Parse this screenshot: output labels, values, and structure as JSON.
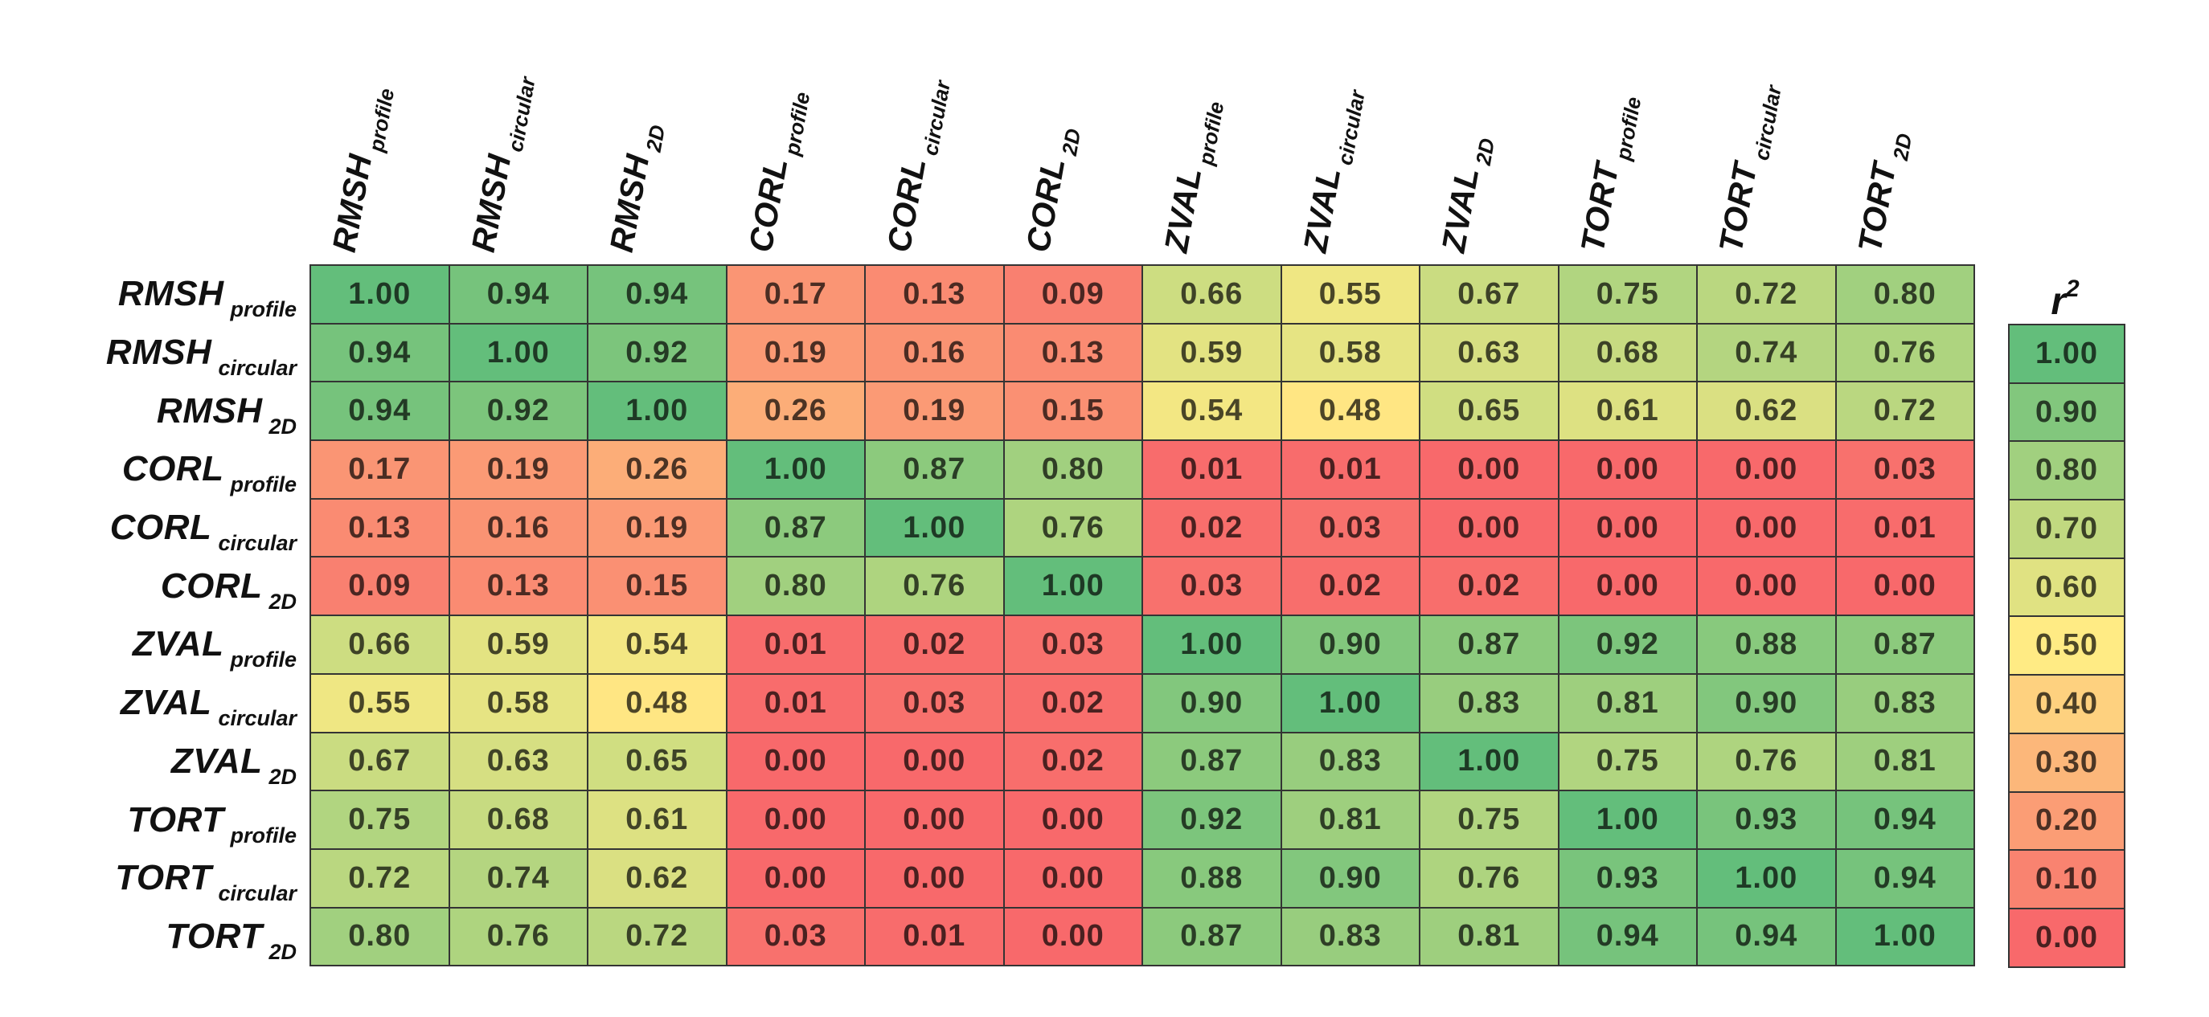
{
  "chart_data": {
    "type": "heatmap",
    "title": "",
    "labels": [
      {
        "main": "RMSH",
        "sub": "profile"
      },
      {
        "main": "RMSH",
        "sub": "circular"
      },
      {
        "main": "RMSH",
        "sub": "2D"
      },
      {
        "main": "CORL",
        "sub": "profile"
      },
      {
        "main": "CORL",
        "sub": "circular"
      },
      {
        "main": "CORL",
        "sub": "2D"
      },
      {
        "main": "ZVAL",
        "sub": "profile"
      },
      {
        "main": "ZVAL",
        "sub": "circular"
      },
      {
        "main": "ZVAL",
        "sub": "2D"
      },
      {
        "main": "TORT",
        "sub": "profile"
      },
      {
        "main": "TORT",
        "sub": "circular"
      },
      {
        "main": "TORT",
        "sub": "2D"
      }
    ],
    "values": [
      [
        1.0,
        0.94,
        0.94,
        0.17,
        0.13,
        0.09,
        0.66,
        0.55,
        0.67,
        0.75,
        0.72,
        0.8
      ],
      [
        0.94,
        1.0,
        0.92,
        0.19,
        0.16,
        0.13,
        0.59,
        0.58,
        0.63,
        0.68,
        0.74,
        0.76
      ],
      [
        0.94,
        0.92,
        1.0,
        0.26,
        0.19,
        0.15,
        0.54,
        0.48,
        0.65,
        0.61,
        0.62,
        0.72
      ],
      [
        0.17,
        0.19,
        0.26,
        1.0,
        0.87,
        0.8,
        0.01,
        0.01,
        0.0,
        0.0,
        0.0,
        0.03
      ],
      [
        0.13,
        0.16,
        0.19,
        0.87,
        1.0,
        0.76,
        0.02,
        0.03,
        0.0,
        0.0,
        0.0,
        0.01
      ],
      [
        0.09,
        0.13,
        0.15,
        0.8,
        0.76,
        1.0,
        0.03,
        0.02,
        0.02,
        0.0,
        0.0,
        0.0
      ],
      [
        0.66,
        0.59,
        0.54,
        0.01,
        0.02,
        0.03,
        1.0,
        0.9,
        0.87,
        0.92,
        0.88,
        0.87
      ],
      [
        0.55,
        0.58,
        0.48,
        0.01,
        0.03,
        0.02,
        0.9,
        1.0,
        0.83,
        0.81,
        0.9,
        0.83
      ],
      [
        0.67,
        0.63,
        0.65,
        0.0,
        0.0,
        0.02,
        0.87,
        0.83,
        1.0,
        0.75,
        0.76,
        0.81
      ],
      [
        0.75,
        0.68,
        0.61,
        0.0,
        0.0,
        0.0,
        0.92,
        0.81,
        0.75,
        1.0,
        0.93,
        0.94
      ],
      [
        0.72,
        0.74,
        0.62,
        0.0,
        0.0,
        0.0,
        0.88,
        0.9,
        0.76,
        0.93,
        1.0,
        0.94
      ],
      [
        0.8,
        0.76,
        0.72,
        0.03,
        0.01,
        0.0,
        0.87,
        0.83,
        0.81,
        0.94,
        0.94,
        1.0
      ]
    ],
    "value_format_decimals": 2,
    "legend": {
      "title_base": "r",
      "title_sup": "2",
      "ticks": [
        1.0,
        0.9,
        0.8,
        0.7,
        0.6,
        0.5,
        0.4,
        0.3,
        0.2,
        0.1,
        0.0
      ]
    },
    "colormap": {
      "min_color": "#F8696B",
      "mid_color": "#FFEB84",
      "max_color": "#63BE7B",
      "min": 0,
      "mid": 0.5,
      "max": 1
    },
    "grid_border_color": "#343434",
    "value_text_shade_factor": 0.3
  }
}
